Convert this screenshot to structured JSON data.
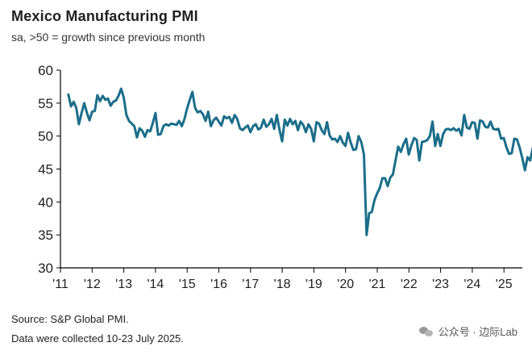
{
  "title": "Mexico Manufacturing PMI",
  "subtitle": "sa, >50 = growth since previous month",
  "footer": {
    "source": "Source: S&P Global PMI.",
    "note": "Data were collected 10-23 July 2025."
  },
  "watermark": {
    "text": "公众号 · 边际Lab",
    "icon": "wechat-icon"
  },
  "colors": {
    "line": "#1b6e8a",
    "axis": "#000000",
    "text": "#1f1f1f"
  },
  "chart_data": {
    "type": "line",
    "title": "Mexico Manufacturing PMI",
    "subtitle": "sa, >50 = growth since previous month",
    "xlabel": "",
    "ylabel": "",
    "ylim": [
      30,
      60
    ],
    "xlim": [
      2011.0,
      2025.58
    ],
    "yticks": [
      30,
      35,
      40,
      45,
      50,
      55,
      60
    ],
    "xtick_labels": [
      "'11",
      "'12",
      "'13",
      "'14",
      "'15",
      "'16",
      "'17",
      "'18",
      "'19",
      "'20",
      "'21",
      "'22",
      "'23",
      "'24",
      "'25"
    ],
    "xtick_positions": [
      2011,
      2012,
      2013,
      2014,
      2015,
      2016,
      2017,
      2018,
      2019,
      2020,
      2021,
      2022,
      2023,
      2024,
      2025
    ],
    "grid": false,
    "series": [
      {
        "name": "Mexico Manufacturing PMI",
        "start_year": 2011.25,
        "step": 0.0833,
        "values": [
          56.3,
          54.5,
          55.2,
          54.3,
          51.8,
          53.5,
          55.0,
          53.6,
          52.4,
          53.7,
          53.8,
          56.2,
          55.3,
          56.1,
          55.5,
          55.7,
          54.6,
          55.2,
          55.4,
          56.1,
          57.2,
          55.8,
          53.2,
          52.3,
          51.9,
          51.5,
          49.8,
          51.2,
          50.8,
          49.9,
          50.9,
          50.7,
          52.0,
          53.5,
          50.2,
          50.3,
          51.5,
          51.8,
          51.6,
          51.9,
          51.8,
          51.7,
          52.3,
          51.5,
          52.6,
          54.2,
          55.5,
          56.7,
          54.3,
          53.6,
          53.8,
          53.3,
          52.3,
          53.7,
          51.5,
          52.4,
          52.8,
          52.2,
          51.6,
          53.0,
          52.7,
          52.9,
          52.0,
          53.2,
          52.6,
          51.2,
          50.9,
          51.3,
          51.6,
          50.6,
          51.5,
          51.8,
          51.0,
          51.3,
          52.5,
          51.4,
          51.8,
          52.6,
          51.1,
          53.2,
          51.0,
          49.2,
          52.5,
          51.6,
          52.6,
          51.8,
          52.3,
          50.9,
          52.2,
          51.7,
          50.6,
          51.8,
          51.1,
          49.2,
          52.1,
          51.9,
          50.9,
          50.3,
          52.1,
          50.1,
          49.5,
          49.6,
          49.1,
          50.0,
          49.0,
          48.5,
          50.5,
          49.0,
          47.9,
          48.0,
          50.0,
          49.1,
          47.2,
          35.0,
          38.3,
          38.5,
          40.3,
          41.3,
          42.1,
          43.6,
          43.6,
          42.4,
          43.7,
          44.2,
          46.4,
          48.4,
          47.6,
          48.8,
          49.6,
          47.2,
          48.6,
          49.7,
          49.4,
          46.3,
          49.1,
          49.2,
          49.4,
          50.0,
          52.2,
          48.5,
          50.3,
          48.5,
          50.3,
          51.0,
          51.1,
          50.9,
          51.2,
          50.8,
          51.1,
          50.1,
          53.2,
          51.3,
          51.1,
          52.1,
          52.0,
          49.6,
          52.4,
          52.2,
          51.4,
          51.3,
          52.2,
          51.1,
          51.0,
          51.1,
          49.6,
          49.7,
          48.3,
          47.3,
          47.4,
          49.6,
          49.5,
          48.3,
          46.7,
          44.8,
          46.8,
          46.3,
          48.2,
          49.1
        ]
      }
    ]
  }
}
